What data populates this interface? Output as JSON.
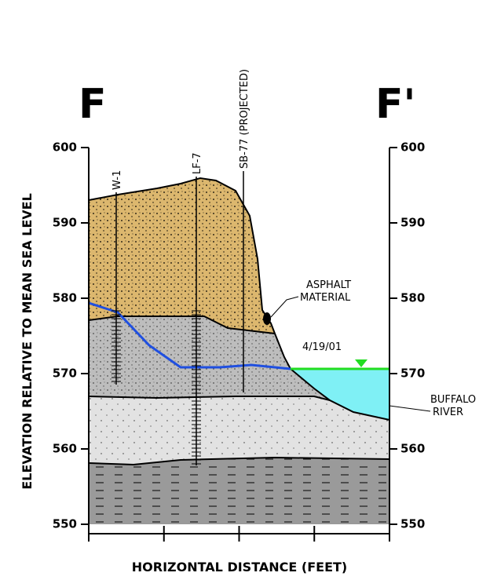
{
  "section": {
    "left_title": "F",
    "right_title": "F'"
  },
  "y_axis": {
    "label": "ELEVATION RELATIVE TO MEAN SEA LEVEL",
    "ticks": [
      "600",
      "590",
      "580",
      "570",
      "560",
      "550"
    ]
  },
  "x_axis": {
    "label": "HORIZONTAL DISTANCE (FEET)"
  },
  "wells": [
    "W-1",
    "LF-7",
    "SB-77 (PROJECTED)"
  ],
  "annotations": {
    "asphalt": [
      "ASPHALT",
      "MATERIAL"
    ],
    "water_date": "4/19/01",
    "river": [
      "BUFFALO",
      "RIVER"
    ]
  }
}
